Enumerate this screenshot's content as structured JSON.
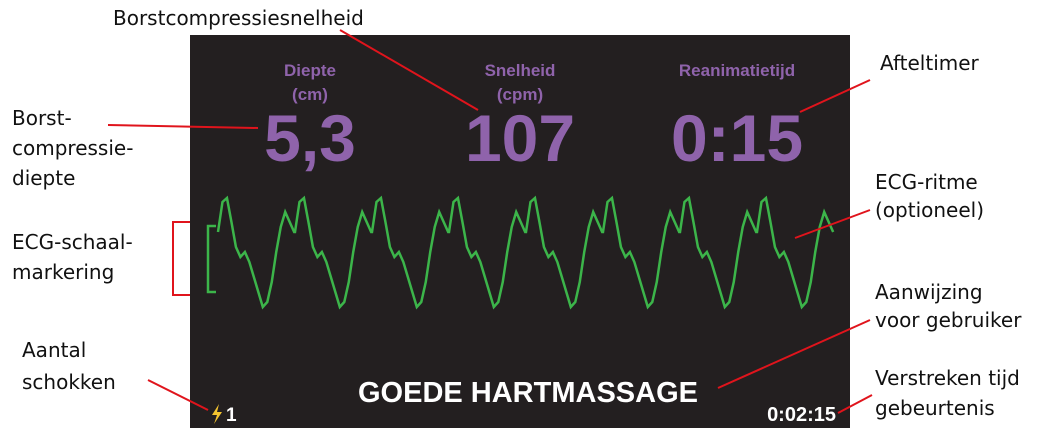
{
  "screen": {
    "metrics": [
      {
        "label": [
          "Diepte",
          "(cm)"
        ],
        "value": "5,3"
      },
      {
        "label": [
          "Snelheid",
          "(cpm)"
        ],
        "value": "107"
      },
      {
        "label": [
          "Reanimatietijd"
        ],
        "value": "0:15"
      }
    ],
    "prompt": "GOEDE HARTMASSAGE",
    "shocks": "1",
    "elapsed": "0:02:15"
  },
  "callouts": [
    {
      "lines": [
        "Borstcompressiesnelheid"
      ]
    },
    {
      "lines": [
        "Afteltimer"
      ]
    },
    {
      "lines": [
        "Borst-",
        "compressie-",
        "diepte"
      ]
    },
    {
      "lines": [
        "ECG-ritme",
        "(optioneel)"
      ]
    },
    {
      "lines": [
        "ECG-schaal-",
        "markering"
      ]
    },
    {
      "lines": [
        "Aanwijzing",
        "voor gebruiker"
      ]
    },
    {
      "lines": [
        "Aantal",
        "schokken"
      ]
    },
    {
      "lines": [
        "Verstreken tijd",
        "gebeurtenis"
      ]
    }
  ]
}
